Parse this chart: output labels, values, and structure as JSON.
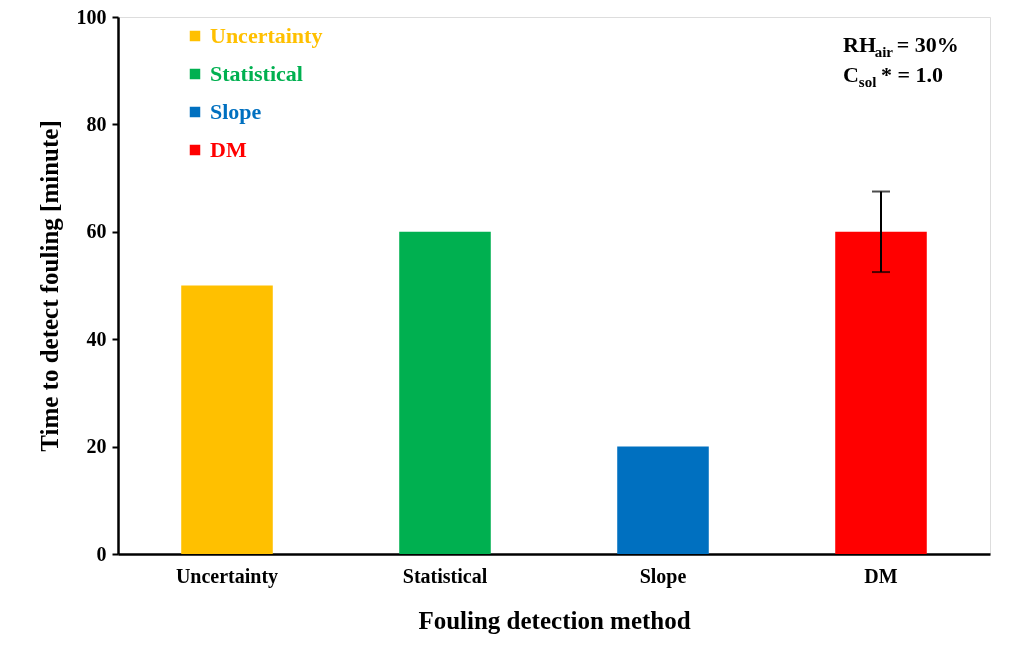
{
  "chart_data": {
    "type": "bar",
    "categories": [
      "Uncertainty",
      "Statistical",
      "Slope",
      "DM"
    ],
    "series": [
      {
        "name": "Uncertainty",
        "color": "#ffc000",
        "values": [
          50,
          null,
          null,
          null
        ]
      },
      {
        "name": "Statistical",
        "color": "#00b050",
        "values": [
          null,
          60,
          null,
          null
        ]
      },
      {
        "name": "Slope",
        "color": "#0070c0",
        "values": [
          null,
          null,
          20,
          null
        ]
      },
      {
        "name": "DM",
        "color": "#ff0000",
        "values": [
          null,
          null,
          null,
          60
        ],
        "errors": [
          null,
          null,
          null,
          7.5
        ]
      }
    ],
    "xlabel": "Fouling detection method",
    "ylabel": "Time to detect fouling [minute]",
    "ylim": [
      0,
      100
    ],
    "yticks": [
      0,
      20,
      40,
      60,
      80,
      100
    ],
    "grid": false,
    "legend": "top left",
    "annotations": [
      "RH$_{air}$ = 30%",
      "C$_{sol}$* = 1.0"
    ]
  }
}
